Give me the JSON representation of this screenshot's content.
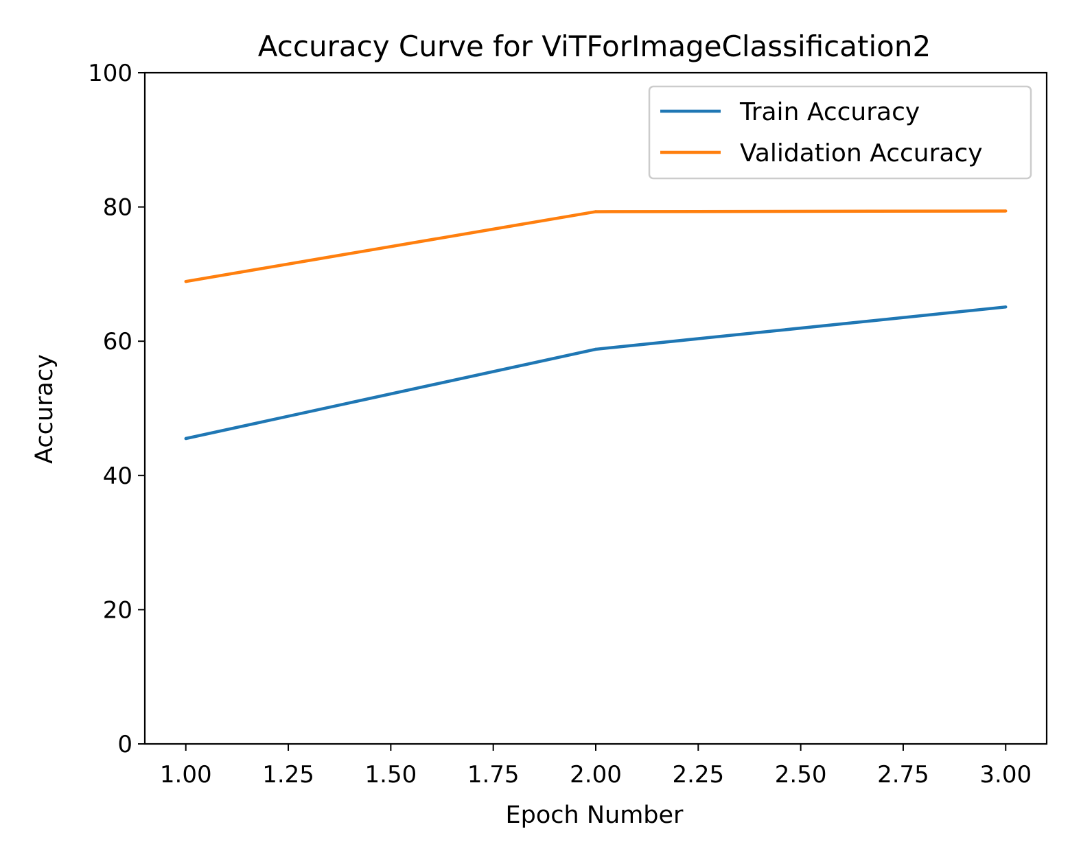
{
  "chart_data": {
    "type": "line",
    "title": "Accuracy Curve for  ViTForImageClassification2",
    "xlabel": "Epoch Number",
    "ylabel": "Accuracy",
    "xlim": [
      0.9,
      3.1
    ],
    "ylim": [
      0,
      100
    ],
    "x_ticks": [
      1.0,
      1.25,
      1.5,
      1.75,
      2.0,
      2.25,
      2.5,
      2.75,
      3.0
    ],
    "x_tick_labels": [
      "1.00",
      "1.25",
      "1.50",
      "1.75",
      "2.00",
      "2.25",
      "2.50",
      "2.75",
      "3.00"
    ],
    "y_ticks": [
      0,
      20,
      40,
      60,
      80,
      100
    ],
    "y_tick_labels": [
      "0",
      "20",
      "40",
      "60",
      "80",
      "100"
    ],
    "grid": false,
    "legend_position": "top-right",
    "x": [
      1,
      2,
      3
    ],
    "series": [
      {
        "name": "Train Accuracy",
        "values": [
          45.5,
          58.8,
          65.1
        ],
        "color": "#1f77b4"
      },
      {
        "name": "Validation Accuracy",
        "values": [
          68.9,
          79.3,
          79.4
        ],
        "color": "#ff7f0e"
      }
    ]
  }
}
